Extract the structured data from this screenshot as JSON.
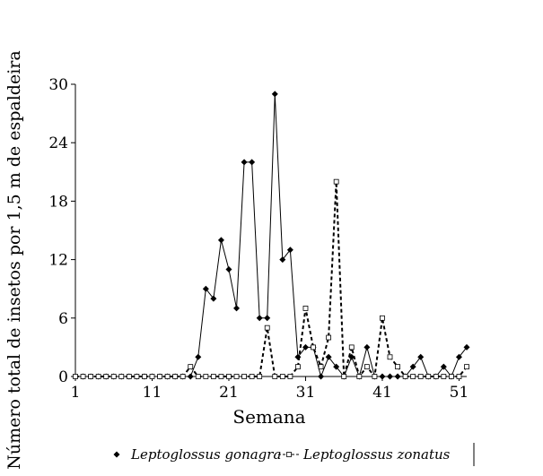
{
  "chart_data": {
    "type": "line",
    "xlabel": "Semana",
    "ylabel": "Número total de insetos por  1,5 m de espaldeira",
    "x": [
      1,
      2,
      3,
      4,
      5,
      6,
      7,
      8,
      9,
      10,
      11,
      12,
      13,
      14,
      15,
      16,
      17,
      18,
      19,
      20,
      21,
      22,
      23,
      24,
      25,
      26,
      27,
      28,
      29,
      30,
      31,
      32,
      33,
      34,
      35,
      36,
      37,
      38,
      39,
      40,
      41,
      42,
      43,
      44,
      45,
      46,
      47,
      48,
      49,
      50,
      51,
      52
    ],
    "series": [
      {
        "name": "Leptoglossus gonagra",
        "color": "#000000",
        "marker": "diamond",
        "dash": false,
        "values": [
          0,
          0,
          0,
          0,
          0,
          0,
          0,
          0,
          0,
          0,
          0,
          0,
          0,
          0,
          0,
          0,
          2,
          9,
          8,
          14,
          11,
          7,
          22,
          22,
          6,
          6,
          29,
          12,
          13,
          2,
          3,
          3,
          0,
          2,
          1,
          0,
          2,
          0,
          3,
          0,
          0,
          0,
          0,
          0,
          1,
          2,
          0,
          0,
          1,
          0,
          2,
          3
        ]
      },
      {
        "name": "Leptoglossus zonatus",
        "color": "#000000",
        "marker": "square",
        "dash": true,
        "values": [
          0,
          0,
          0,
          0,
          0,
          0,
          0,
          0,
          0,
          0,
          0,
          0,
          0,
          0,
          0,
          1,
          0,
          0,
          0,
          0,
          0,
          0,
          0,
          0,
          0,
          5,
          0,
          0,
          0,
          1,
          7,
          3,
          1,
          4,
          20,
          0,
          3,
          0,
          1,
          0,
          6,
          2,
          1,
          0,
          0,
          0,
          0,
          0,
          0,
          0,
          0,
          1
        ]
      }
    ],
    "xlim": [
      1,
      52
    ],
    "xticks": [
      1,
      11,
      21,
      31,
      41,
      51
    ],
    "ylim": [
      0,
      30
    ],
    "yticks": [
      0,
      6,
      12,
      18,
      24,
      30
    ],
    "grid": false,
    "legend": "bottom"
  }
}
